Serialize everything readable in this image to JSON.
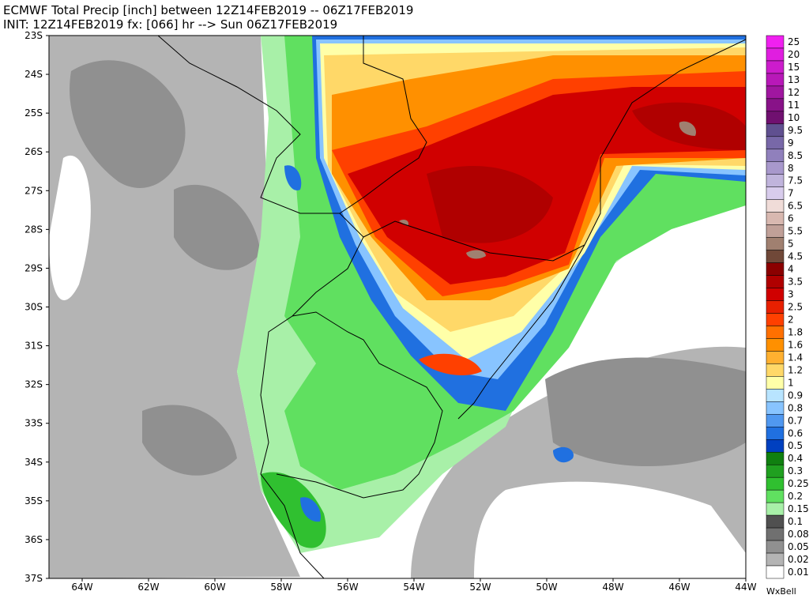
{
  "header": {
    "line1": "ECMWF Total Precip [inch] between 12Z14FEB2019 -- 06Z17FEB2019",
    "line2": "INIT: 12Z14FEB2019 fx: [066] hr --> Sun 06Z17FEB2019"
  },
  "map": {
    "lat_labels": [
      "23S",
      "24S",
      "25S",
      "26S",
      "27S",
      "28S",
      "29S",
      "30S",
      "31S",
      "32S",
      "33S",
      "34S",
      "35S",
      "36S",
      "37S"
    ],
    "lon_labels": [
      "64W",
      "62W",
      "60W",
      "58W",
      "56W",
      "54W",
      "52W",
      "50W",
      "48W",
      "46W",
      "44W"
    ]
  },
  "legend": [
    {
      "label": "25",
      "color": "#f020f0"
    },
    {
      "label": "20",
      "color": "#e01ee0"
    },
    {
      "label": "15",
      "color": "#cc1ccc"
    },
    {
      "label": "13",
      "color": "#b818b8"
    },
    {
      "label": "12",
      "color": "#a016a0"
    },
    {
      "label": "11",
      "color": "#881288"
    },
    {
      "label": "10",
      "color": "#701070"
    },
    {
      "label": "9.5",
      "color": "#605090"
    },
    {
      "label": "9",
      "color": "#7868a8"
    },
    {
      "label": "8.5",
      "color": "#9080bc"
    },
    {
      "label": "8",
      "color": "#a898cc"
    },
    {
      "label": "7.5",
      "color": "#c0b4dc"
    },
    {
      "label": "7",
      "color": "#d8ccec"
    },
    {
      "label": "6.5",
      "color": "#f0dcd8"
    },
    {
      "label": "6",
      "color": "#d8b8b0"
    },
    {
      "label": "5.5",
      "color": "#c0a098"
    },
    {
      "label": "5",
      "color": "#a08070"
    },
    {
      "label": "4.5",
      "color": "#704838"
    },
    {
      "label": "4",
      "color": "#8b0000"
    },
    {
      "label": "3.5",
      "color": "#b00000"
    },
    {
      "label": "3",
      "color": "#d00000"
    },
    {
      "label": "2.5",
      "color": "#e82000"
    },
    {
      "label": "2",
      "color": "#ff4000"
    },
    {
      "label": "1.8",
      "color": "#ff7000"
    },
    {
      "label": "1.6",
      "color": "#ff9000"
    },
    {
      "label": "1.4",
      "color": "#ffb030"
    },
    {
      "label": "1.2",
      "color": "#ffd868"
    },
    {
      "label": "1",
      "color": "#ffffa8"
    },
    {
      "label": "0.9",
      "color": "#b8e4ff"
    },
    {
      "label": "0.8",
      "color": "#88c4ff"
    },
    {
      "label": "0.7",
      "color": "#5098f0"
    },
    {
      "label": "0.6",
      "color": "#2070e0"
    },
    {
      "label": "0.5",
      "color": "#0040c0"
    },
    {
      "label": "0.4",
      "color": "#108010"
    },
    {
      "label": "0.3",
      "color": "#20a020"
    },
    {
      "label": "0.25",
      "color": "#30c030"
    },
    {
      "label": "0.2",
      "color": "#60e060"
    },
    {
      "label": "0.15",
      "color": "#a8f0a8"
    },
    {
      "label": "0.1",
      "color": "#505050"
    },
    {
      "label": "0.08",
      "color": "#707070"
    },
    {
      "label": "0.05",
      "color": "#909090"
    },
    {
      "label": "0.02",
      "color": "#b4b4b4"
    },
    {
      "label": "0.01",
      "color": "#ffffff"
    }
  ],
  "logo": "WxBell"
}
